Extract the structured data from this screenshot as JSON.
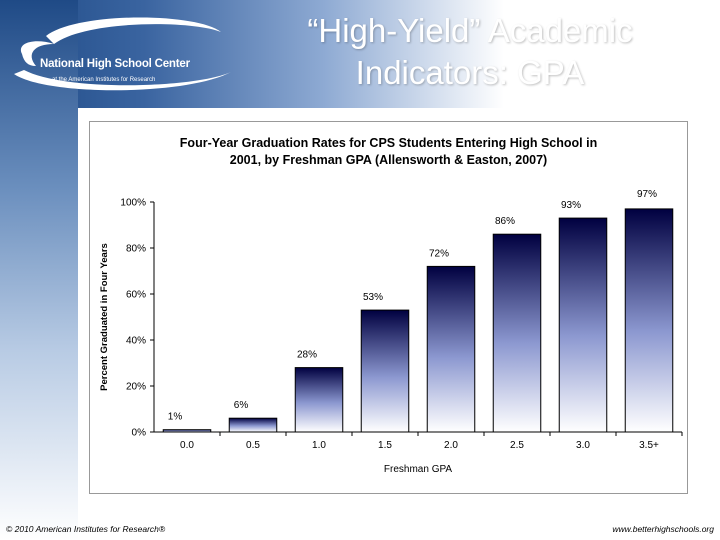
{
  "slide": {
    "title_line1": "“High-Yield” Academic",
    "title_line2": "Indicators:  GPA",
    "logo": {
      "name": "National High School Center",
      "sub": "at the American Institutes for Research"
    },
    "footer_left": "© 2010 American Institutes for Research®",
    "footer_right": "www.betterhighschools.org"
  },
  "colors": {
    "brand_blue": "#1e4a86",
    "bar_top": "#000040",
    "bar_bottom": "#ffffff"
  },
  "chart_data": {
    "type": "bar",
    "title_line1": "Four-Year Graduation Rates for CPS Students Entering High School in",
    "title_line2": "2001, by Freshman GPA (Allensworth & Easton, 2007)",
    "xlabel": "Freshman GPA",
    "ylabel": "Percent Graduated in Four Years",
    "categories": [
      "0.0",
      "0.5",
      "1.0",
      "1.5",
      "2.0",
      "2.5",
      "3.0",
      "3.5+"
    ],
    "values": [
      1,
      6,
      28,
      53,
      72,
      86,
      93,
      97
    ],
    "value_labels": [
      "1%",
      "6%",
      "28%",
      "53%",
      "72%",
      "86%",
      "93%",
      "97%"
    ],
    "yticks": [
      "0%",
      "20%",
      "40%",
      "60%",
      "80%",
      "100%"
    ],
    "ylim": [
      0,
      100
    ],
    "grid": false,
    "legend": "none"
  }
}
